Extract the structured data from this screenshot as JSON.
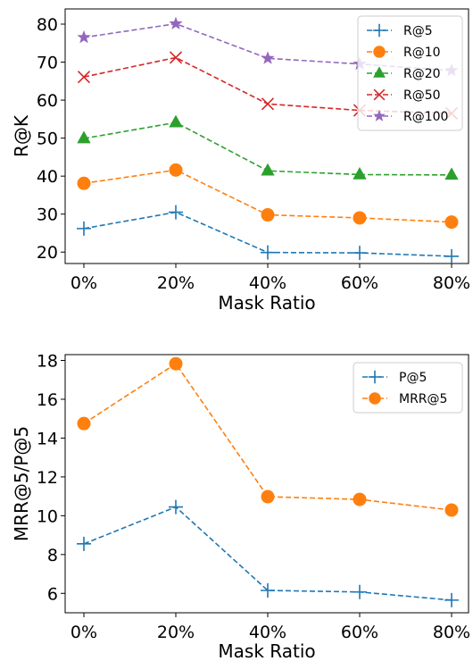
{
  "chart_data": [
    {
      "type": "line",
      "categories": [
        "0%",
        "20%",
        "40%",
        "60%",
        "80%"
      ],
      "xlabel": "Mask Ratio",
      "ylabel": "R@K",
      "ylim": [
        17,
        84
      ],
      "yticks": [
        "20",
        "30",
        "40",
        "50",
        "60",
        "70",
        "80"
      ],
      "legend": "top-right",
      "series": [
        {
          "name": "R@5",
          "values": [
            26.2,
            30.5,
            19.9,
            19.8,
            18.9
          ],
          "color": "#1f77b4",
          "marker": "plus"
        },
        {
          "name": "R@10",
          "values": [
            38.1,
            41.6,
            29.8,
            29.0,
            27.9
          ],
          "color": "#ff7f0e",
          "marker": "circle"
        },
        {
          "name": "R@20",
          "values": [
            49.9,
            54.1,
            41.4,
            40.4,
            40.3
          ],
          "color": "#2ca02c",
          "marker": "triangle"
        },
        {
          "name": "R@50",
          "values": [
            66.1,
            71.2,
            59.0,
            57.3,
            56.5
          ],
          "color": "#d62728",
          "marker": "x"
        },
        {
          "name": "R@100",
          "values": [
            76.5,
            80.1,
            71.0,
            69.5,
            67.8
          ],
          "color": "#9467bd",
          "marker": "star"
        }
      ]
    },
    {
      "type": "line",
      "categories": [
        "0%",
        "20%",
        "40%",
        "60%",
        "80%"
      ],
      "xlabel": "Mask Ratio",
      "ylabel": "MRR@5/P@5",
      "ylim": [
        5.0,
        18.3
      ],
      "yticks": [
        "6",
        "8",
        "10",
        "12",
        "14",
        "16",
        "18"
      ],
      "legend": "top-right",
      "series": [
        {
          "name": "P@5",
          "values": [
            8.55,
            10.45,
            6.15,
            6.07,
            5.65
          ],
          "color": "#1f77b4",
          "marker": "plus"
        },
        {
          "name": "MRR@5",
          "values": [
            14.75,
            17.83,
            10.98,
            10.84,
            10.29
          ],
          "color": "#ff7f0e",
          "marker": "circle"
        }
      ]
    }
  ]
}
